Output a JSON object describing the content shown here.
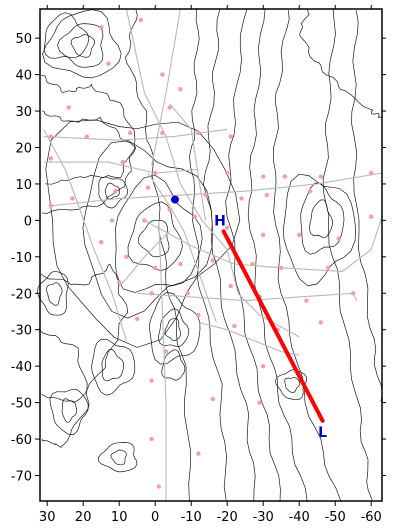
{
  "map": {
    "x_range": [
      32,
      -63
    ],
    "y_range": [
      -77,
      58
    ],
    "x_ticks": [
      30,
      20,
      10,
      0,
      -10,
      -20,
      -30,
      -40,
      -50,
      -60
    ],
    "y_ticks": [
      50,
      40,
      30,
      20,
      10,
      0,
      -10,
      -20,
      -30,
      -40,
      -50,
      -60,
      -70
    ],
    "colors": {
      "frame": "#000000",
      "contour": "#1a1a1a",
      "grid": "#b8b8b8",
      "station": "#f2a0a0",
      "track": "#ff0000",
      "marker_text": "#0000cc",
      "point": "#0000cc"
    },
    "track": {
      "from": [
        -19,
        -3
      ],
      "to": [
        -46.5,
        -55
      ]
    },
    "high_marker": {
      "label": "H",
      "position": [
        -18,
        0
      ]
    },
    "low_marker": {
      "label": "L",
      "position": [
        -46.5,
        -58
      ]
    },
    "point": {
      "position": [
        -5.5,
        5.7
      ]
    },
    "stations": [
      [
        15,
        53
      ],
      [
        4,
        55
      ],
      [
        -2,
        40
      ],
      [
        13,
        43
      ],
      [
        -7,
        36
      ],
      [
        24,
        31
      ],
      [
        -4,
        31
      ],
      [
        29,
        23
      ],
      [
        19,
        23
      ],
      [
        7,
        24
      ],
      [
        -2,
        24
      ],
      [
        -12,
        24
      ],
      [
        -21,
        23
      ],
      [
        29,
        17
      ],
      [
        9,
        16
      ],
      [
        0,
        13
      ],
      [
        -20,
        13
      ],
      [
        -30,
        12
      ],
      [
        -36,
        12
      ],
      [
        -46,
        12
      ],
      [
        -60,
        13
      ],
      [
        29,
        4
      ],
      [
        23,
        6
      ],
      [
        11,
        8
      ],
      [
        2,
        9
      ],
      [
        -4,
        3
      ],
      [
        -14,
        7
      ],
      [
        -24,
        6
      ],
      [
        -31,
        7
      ],
      [
        -43,
        8
      ],
      [
        12,
        0
      ],
      [
        3,
        0
      ],
      [
        -11,
        1
      ],
      [
        -20,
        -2
      ],
      [
        -30,
        -4
      ],
      [
        -40,
        -4
      ],
      [
        -51,
        -5
      ],
      [
        -60,
        1
      ],
      [
        15,
        -6
      ],
      [
        8,
        -10
      ],
      [
        0,
        -13
      ],
      [
        -7,
        -12
      ],
      [
        -16,
        -11
      ],
      [
        -27,
        -12
      ],
      [
        -35,
        -13
      ],
      [
        -48,
        -13
      ],
      [
        10,
        -17
      ],
      [
        1,
        -20
      ],
      [
        -9,
        -20
      ],
      [
        -21,
        -18
      ],
      [
        -29,
        -21
      ],
      [
        -42,
        -22
      ],
      [
        -55,
        -20
      ],
      [
        5,
        -27
      ],
      [
        -12,
        -26
      ],
      [
        -22,
        -29
      ],
      [
        -34,
        -30
      ],
      [
        -46,
        -28
      ],
      [
        -3,
        -36
      ],
      [
        -30,
        -40
      ],
      [
        1,
        -44
      ],
      [
        -16,
        -49
      ],
      [
        -29,
        -50
      ],
      [
        1,
        -60
      ],
      [
        -12,
        -64
      ],
      [
        -1,
        -73
      ]
    ],
    "grid_lines": [
      [
        [
          8,
          58
        ],
        [
          3,
          35
        ],
        [
          -3,
          23
        ],
        [
          -7,
          10
        ],
        [
          -13,
          0
        ],
        [
          -20,
          -8
        ],
        [
          -23,
          -20
        ],
        [
          -29,
          -26
        ],
        [
          -40,
          -32
        ]
      ],
      [
        [
          -7,
          58
        ],
        [
          -3,
          35
        ],
        [
          1,
          15
        ]
      ],
      [
        [
          29,
          4
        ],
        [
          10,
          6
        ],
        [
          -8,
          7
        ],
        [
          -25,
          8
        ],
        [
          -45,
          10
        ],
        [
          -63,
          13
        ]
      ],
      [
        [
          31,
          23
        ],
        [
          10,
          22
        ],
        [
          -5,
          23
        ],
        [
          -20,
          25
        ]
      ],
      [
        [
          31,
          16
        ],
        [
          13,
          16
        ],
        [
          0,
          13
        ],
        [
          -12,
          14
        ]
      ],
      [
        [
          31,
          25
        ],
        [
          25,
          14
        ],
        [
          22,
          6
        ],
        [
          17,
          -8
        ],
        [
          12,
          -20
        ],
        [
          8,
          -33
        ]
      ],
      [
        [
          -1,
          0
        ],
        [
          -2,
          -25
        ],
        [
          -3,
          -50
        ],
        [
          -3,
          -77
        ]
      ],
      [
        [
          3,
          0
        ],
        [
          -10,
          -7
        ],
        [
          -22,
          -12
        ],
        [
          -35,
          -13
        ],
        [
          -52,
          -14
        ],
        [
          -60,
          -8
        ],
        [
          -63,
          1
        ]
      ],
      [
        [
          5,
          -20
        ],
        [
          -10,
          -21
        ],
        [
          -25,
          -22
        ],
        [
          -40,
          -21
        ],
        [
          -55,
          -20
        ],
        [
          -56,
          -22
        ]
      ],
      [
        [
          -12,
          -28
        ],
        [
          -20,
          -30
        ],
        [
          -35,
          -36
        ],
        [
          -40,
          -37
        ]
      ],
      [
        [
          -4,
          -3
        ],
        [
          3,
          -10
        ],
        [
          8,
          -16
        ],
        [
          10,
          -18
        ]
      ],
      [
        [
          -4,
          32
        ],
        [
          -10,
          25
        ],
        [
          -12,
          12
        ],
        [
          -14,
          0
        ]
      ],
      [
        [
          2,
          13
        ],
        [
          -4,
          4
        ],
        [
          -8,
          -3
        ],
        [
          -12,
          -14
        ],
        [
          -17,
          -28
        ]
      ]
    ],
    "contours": [
      {
        "c": [
          -46,
          0
        ],
        "rx": 3,
        "ry": 5
      },
      {
        "c": [
          -46,
          0
        ],
        "rx": 6,
        "ry": 9
      },
      {
        "c": [
          -45,
          -2
        ],
        "rx": 10,
        "ry": 14
      },
      {
        "c": [
          -38,
          -45
        ],
        "rx": 2,
        "ry": 2
      },
      {
        "c": [
          -38,
          -45
        ],
        "rx": 4,
        "ry": 4
      },
      {
        "c": [
          0,
          -5
        ],
        "rx": 4,
        "ry": 5
      },
      {
        "c": [
          0,
          -5
        ],
        "rx": 7,
        "ry": 9
      },
      {
        "c": [
          0,
          -5
        ],
        "rx": 12,
        "ry": 15
      },
      {
        "c": [
          3,
          -2
        ],
        "rx": 18,
        "ry": 22
      },
      {
        "c": [
          5,
          0
        ],
        "rx": 26,
        "ry": 30
      },
      {
        "c": [
          20,
          48
        ],
        "rx": 3,
        "ry": 3
      },
      {
        "c": [
          20,
          48
        ],
        "rx": 6,
        "ry": 6
      },
      {
        "c": [
          20,
          48
        ],
        "rx": 10,
        "ry": 9
      },
      {
        "c": [
          25,
          50
        ],
        "rx": 6,
        "ry": 6
      },
      {
        "c": [
          12,
          8
        ],
        "rx": 2,
        "ry": 2
      },
      {
        "c": [
          12,
          8
        ],
        "rx": 4,
        "ry": 4
      },
      {
        "c": [
          28,
          -20
        ],
        "rx": 2,
        "ry": 3
      },
      {
        "c": [
          28,
          -20
        ],
        "rx": 4,
        "ry": 6
      },
      {
        "c": [
          -5,
          -30
        ],
        "rx": 2,
        "ry": 3
      },
      {
        "c": [
          -5,
          -30
        ],
        "rx": 4,
        "ry": 5
      },
      {
        "c": [
          -5,
          -30
        ],
        "rx": 7,
        "ry": 9
      },
      {
        "c": [
          24,
          -52
        ],
        "rx": 2,
        "ry": 3
      },
      {
        "c": [
          24,
          -52
        ],
        "rx": 5,
        "ry": 6
      },
      {
        "c": [
          10,
          -65
        ],
        "rx": 2,
        "ry": 2
      },
      {
        "c": [
          10,
          -65
        ],
        "rx": 5,
        "ry": 4
      },
      {
        "c": [
          -5,
          -40
        ],
        "rx": 3,
        "ry": 4
      },
      {
        "c": [
          12,
          -40
        ],
        "rx": 3,
        "ry": 4
      },
      {
        "c": [
          12,
          -40
        ],
        "rx": 6,
        "ry": 7
      }
    ],
    "contour_lines": [
      [
        [
          -37,
          58
        ],
        [
          -34,
          35
        ],
        [
          -33,
          10
        ],
        [
          -35,
          -20
        ],
        [
          -42,
          -50
        ],
        [
          -51,
          -77
        ]
      ],
      [
        [
          -30,
          58
        ],
        [
          -28,
          30
        ],
        [
          -26,
          5
        ],
        [
          -29,
          -25
        ],
        [
          -35,
          -50
        ],
        [
          -42,
          -77
        ]
      ],
      [
        [
          -25,
          58
        ],
        [
          -22,
          30
        ],
        [
          -20,
          5
        ],
        [
          -24,
          -25
        ],
        [
          -30,
          -50
        ],
        [
          -35,
          -77
        ]
      ],
      [
        [
          -18,
          58
        ],
        [
          -16,
          35
        ],
        [
          -14,
          10
        ],
        [
          -18,
          -20
        ],
        [
          -25,
          -50
        ],
        [
          -28,
          -77
        ]
      ],
      [
        [
          -12,
          58
        ],
        [
          -11,
          35
        ],
        [
          -10,
          15
        ],
        [
          -12,
          -15
        ],
        [
          -18,
          -45
        ],
        [
          -20,
          -77
        ]
      ],
      [
        [
          -50,
          58
        ],
        [
          -48,
          30
        ],
        [
          -47,
          5
        ],
        [
          -52,
          -25
        ],
        [
          -57,
          -55
        ],
        [
          -60,
          -77
        ]
      ],
      [
        [
          -56,
          58
        ],
        [
          -55,
          30
        ],
        [
          -56,
          0
        ],
        [
          -60,
          -30
        ],
        [
          -63,
          -50
        ]
      ],
      [
        [
          32,
          40
        ],
        [
          25,
          35
        ],
        [
          18,
          37
        ],
        [
          10,
          32
        ],
        [
          5,
          22
        ],
        [
          10,
          12
        ],
        [
          20,
          12
        ],
        [
          30,
          10
        ]
      ],
      [
        [
          32,
          30
        ],
        [
          24,
          27
        ],
        [
          15,
          28
        ],
        [
          6,
          20
        ],
        [
          8,
          10
        ],
        [
          16,
          4
        ],
        [
          32,
          2
        ]
      ],
      [
        [
          32,
          -15
        ],
        [
          20,
          -18
        ],
        [
          12,
          -12
        ],
        [
          8,
          -25
        ],
        [
          14,
          -40
        ],
        [
          22,
          -50
        ],
        [
          32,
          -48
        ]
      ],
      [
        [
          32,
          -30
        ],
        [
          22,
          -35
        ],
        [
          18,
          -50
        ],
        [
          26,
          -62
        ],
        [
          32,
          -60
        ]
      ],
      [
        [
          -43,
          58
        ],
        [
          -40,
          52
        ],
        [
          -44,
          44
        ],
        [
          -52,
          36
        ],
        [
          -60,
          30
        ],
        [
          -63,
          28
        ]
      ],
      [
        [
          5,
          58
        ],
        [
          8,
          45
        ],
        [
          3,
          30
        ],
        [
          0,
          10
        ],
        [
          -3,
          -15
        ],
        [
          -8,
          -40
        ],
        [
          -10,
          -77
        ]
      ]
    ]
  }
}
